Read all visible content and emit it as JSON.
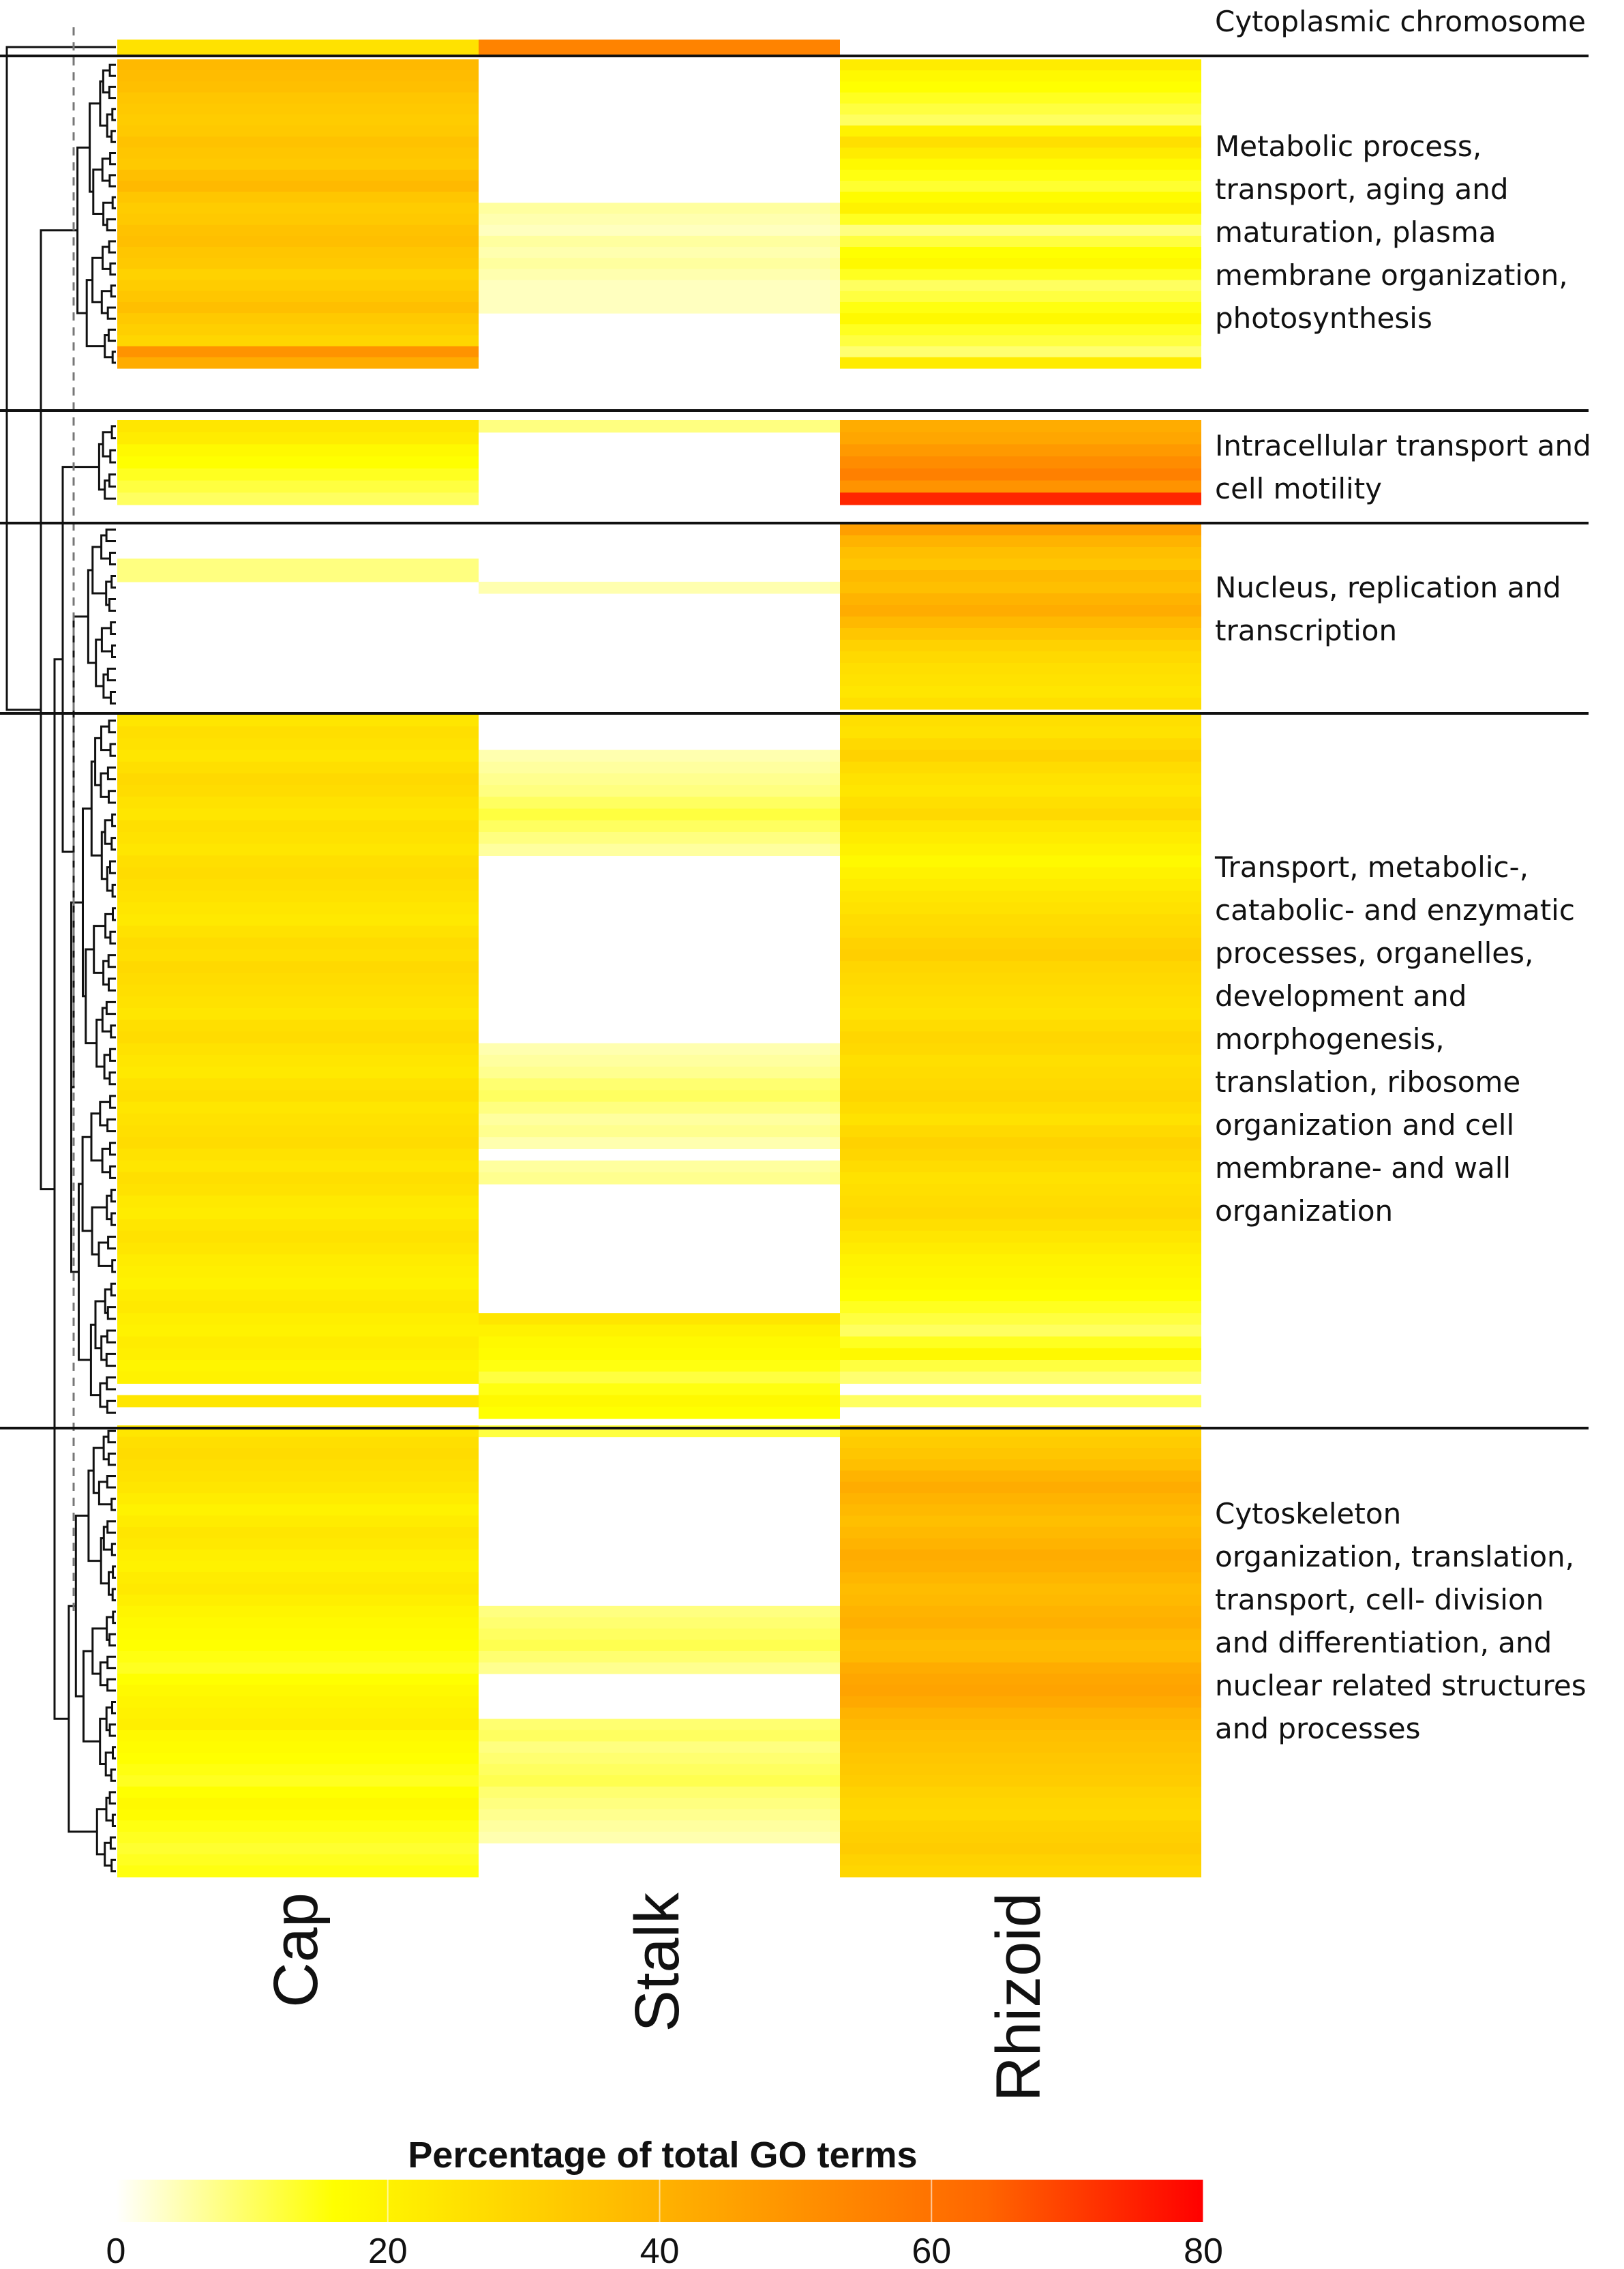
{
  "chart_data": {
    "type": "heatmap",
    "columns": [
      "Cap",
      "Stalk",
      "Rhizoid"
    ],
    "clusters": [
      {
        "label": "Cytoplasmic chromosome",
        "rows": 1,
        "cap": [
          25
        ],
        "stalk": [
          55
        ],
        "rhizoid": [
          0
        ]
      },
      {
        "label": "Metabolic process,\ntransport, aging and\nmaturation, plasma\nmembrane organization,\nphotosynthesis",
        "rows": 28,
        "cap": [
          38,
          37,
          36,
          34,
          33,
          32,
          33,
          35,
          34,
          33,
          36,
          38,
          34,
          32,
          33,
          35,
          36,
          34,
          33,
          30,
          32,
          34,
          36,
          33,
          31,
          29,
          50,
          42
        ],
        "stalk": [
          0,
          0,
          0,
          0,
          0,
          0,
          0,
          0,
          0,
          0,
          0,
          0,
          0,
          6,
          5,
          4,
          6,
          5,
          6,
          5,
          4,
          4,
          4,
          0,
          0,
          0,
          0,
          0
        ],
        "rhizoid": [
          22,
          18,
          16,
          14,
          12,
          10,
          20,
          26,
          22,
          18,
          15,
          13,
          17,
          20,
          14,
          8,
          12,
          16,
          18,
          14,
          10,
          12,
          15,
          18,
          14,
          12,
          9,
          22
        ]
      },
      {
        "label": "Intracellular transport and\ncell motility",
        "rows": 7,
        "cap": [
          24,
          22,
          18,
          16,
          14,
          12,
          10
        ],
        "stalk": [
          8,
          0,
          0,
          0,
          0,
          0,
          0
        ],
        "rhizoid": [
          42,
          44,
          48,
          52,
          56,
          50,
          74
        ]
      },
      {
        "label": "Nucleus, replication and\ntranscription",
        "rows": 16,
        "cap": [
          0,
          0,
          0,
          8,
          8,
          0,
          0,
          0,
          0,
          0,
          0,
          0,
          0,
          0,
          0,
          0
        ],
        "stalk": [
          0,
          0,
          0,
          0,
          0,
          5,
          0,
          0,
          0,
          0,
          0,
          0,
          0,
          0,
          0,
          0
        ],
        "rhizoid": [
          46,
          40,
          36,
          34,
          38,
          36,
          40,
          42,
          38,
          34,
          30,
          28,
          26,
          25,
          24,
          26
        ]
      },
      {
        "label": "Transport, metabolic-,\ncatabolic- and enzymatic\nprocesses, organelles,\ndevelopment and\nmorphogenesis,\ntranslation, ribosome\norganization and cell\nmembrane- and wall\norganization",
        "rows": 60,
        "cap": [
          24,
          26,
          25,
          24,
          26,
          28,
          27,
          25,
          24,
          26,
          25,
          24,
          26,
          27,
          26,
          25,
          24,
          23,
          25,
          27,
          26,
          28,
          27,
          26,
          25,
          24,
          26,
          27,
          25,
          24,
          23,
          25,
          26,
          24,
          25,
          26,
          27,
          25,
          24,
          26,
          25,
          23,
          22,
          24,
          25,
          24,
          22,
          21,
          20,
          22,
          23,
          21,
          20,
          22,
          21,
          19,
          20,
          0,
          24,
          0
        ],
        "stalk": [
          0,
          0,
          0,
          5,
          6,
          7,
          8,
          10,
          12,
          10,
          8,
          6,
          0,
          0,
          0,
          0,
          0,
          0,
          0,
          0,
          0,
          0,
          0,
          0,
          0,
          0,
          0,
          0,
          5,
          6,
          7,
          9,
          10,
          8,
          6,
          7,
          5,
          0,
          6,
          7,
          0,
          0,
          0,
          0,
          0,
          0,
          0,
          0,
          0,
          0,
          0,
          24,
          20,
          18,
          17,
          15,
          12,
          15,
          18,
          16
        ],
        "rhizoid": [
          26,
          25,
          28,
          30,
          27,
          25,
          24,
          26,
          28,
          24,
          22,
          20,
          18,
          20,
          22,
          24,
          25,
          27,
          28,
          30,
          31,
          29,
          28,
          27,
          26,
          25,
          27,
          29,
          28,
          26,
          27,
          28,
          29,
          27,
          25,
          28,
          30,
          29,
          27,
          25,
          26,
          27,
          28,
          26,
          24,
          22,
          20,
          19,
          18,
          16,
          14,
          12,
          10,
          14,
          18,
          12,
          9,
          0,
          10,
          0
        ]
      },
      {
        "label": "Cytoskeleton\norganization, translation,\ntransport, cell-  division\nand differentiation, and\nnuclear related structures\nand processes",
        "rows": 40,
        "cap": [
          24,
          26,
          27,
          26,
          25,
          24,
          22,
          20,
          22,
          24,
          23,
          21,
          20,
          22,
          23,
          21,
          19,
          18,
          17,
          16,
          15,
          14,
          16,
          18,
          19,
          20,
          21,
          18,
          17,
          16,
          15,
          14,
          16,
          18,
          17,
          15,
          14,
          13,
          14,
          15
        ],
        "stalk": [
          12,
          0,
          0,
          0,
          0,
          0,
          0,
          0,
          0,
          0,
          0,
          0,
          0,
          0,
          0,
          0,
          8,
          9,
          10,
          11,
          9,
          7,
          0,
          0,
          0,
          0,
          9,
          10,
          8,
          9,
          10,
          11,
          9,
          8,
          7,
          6,
          5,
          0,
          0,
          0
        ],
        "rhizoid": [
          30,
          32,
          34,
          36,
          40,
          42,
          40,
          38,
          36,
          38,
          40,
          42,
          41,
          39,
          37,
          38,
          40,
          41,
          39,
          37,
          38,
          42,
          44,
          45,
          43,
          40,
          38,
          36,
          35,
          34,
          33,
          32,
          30,
          29,
          28,
          30,
          31,
          32,
          30,
          29
        ]
      }
    ],
    "colorbar": {
      "title": "Percentage of total GO terms",
      "ticks": [
        "0",
        "20",
        "40",
        "60",
        "80"
      ],
      "range": [
        0,
        80
      ],
      "colors": [
        "#ffffff",
        "#ffff00",
        "#ffcc00",
        "#ff9900",
        "#ff6600",
        "#ff0000"
      ]
    }
  }
}
